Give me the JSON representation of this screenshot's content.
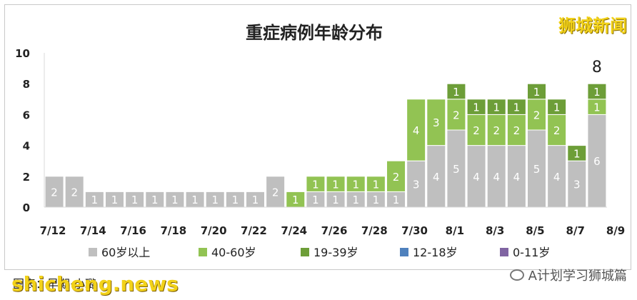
{
  "chart_data": {
    "type": "bar",
    "stacked": true,
    "title": "重症病例年龄分布",
    "ylim": [
      0,
      10
    ],
    "yticks": [
      0,
      2,
      4,
      6,
      8,
      10
    ],
    "grid": false,
    "legend_position": "bottom",
    "categories": [
      "7/12",
      "7/13",
      "7/14",
      "7/15",
      "7/16",
      "7/17",
      "7/18",
      "7/19",
      "7/20",
      "7/21",
      "7/22",
      "7/23",
      "7/24",
      "7/25",
      "7/26",
      "7/27",
      "7/28",
      "7/29",
      "7/30",
      "7/31",
      "8/1",
      "8/2",
      "8/3",
      "8/4",
      "8/5",
      "8/6",
      "8/7",
      "8/8"
    ],
    "xtick_labels": [
      "7/12",
      "7/14",
      "7/16",
      "7/18",
      "7/20",
      "7/22",
      "7/24",
      "7/26",
      "7/28",
      "7/30",
      "8/1",
      "8/3",
      "8/5",
      "8/7",
      "8/9"
    ],
    "series": [
      {
        "name": "60岁以上",
        "color": "#bfbfbf",
        "values": [
          2,
          2,
          1,
          1,
          1,
          1,
          1,
          1,
          1,
          1,
          1,
          2,
          0,
          1,
          1,
          1,
          1,
          1,
          3,
          4,
          5,
          4,
          4,
          4,
          5,
          4,
          3,
          6
        ]
      },
      {
        "name": "40-60岁",
        "color": "#92c353",
        "values": [
          0,
          0,
          0,
          0,
          0,
          0,
          0,
          0,
          0,
          0,
          0,
          0,
          1,
          1,
          1,
          1,
          1,
          2,
          4,
          3,
          2,
          2,
          2,
          2,
          2,
          2,
          0,
          1
        ]
      },
      {
        "name": "19-39岁",
        "color": "#6d9e38",
        "values": [
          0,
          0,
          0,
          0,
          0,
          0,
          0,
          0,
          0,
          0,
          0,
          0,
          0,
          0,
          0,
          0,
          0,
          0,
          0,
          0,
          1,
          1,
          1,
          1,
          1,
          1,
          1,
          1
        ]
      },
      {
        "name": "12-18岁",
        "color": "#4f81bd",
        "values": [
          0,
          0,
          0,
          0,
          0,
          0,
          0,
          0,
          0,
          0,
          0,
          0,
          0,
          0,
          0,
          0,
          0,
          0,
          0,
          0,
          0,
          0,
          0,
          0,
          0,
          0,
          0,
          0
        ]
      },
      {
        "name": "0-11岁",
        "color": "#8064a2",
        "values": [
          0,
          0,
          0,
          0,
          0,
          0,
          0,
          0,
          0,
          0,
          0,
          0,
          0,
          0,
          0,
          0,
          0,
          0,
          0,
          0,
          0,
          0,
          0,
          0,
          0,
          0,
          0,
          0
        ]
      }
    ],
    "annotations": [
      {
        "category": "8/8",
        "text": "8"
      }
    ]
  },
  "watermarks": {
    "top_right": "狮城新闻",
    "bottom_left": "shicheng.news",
    "credit": "图表：早期·小璐",
    "wechat": "A计划学习狮城篇"
  }
}
